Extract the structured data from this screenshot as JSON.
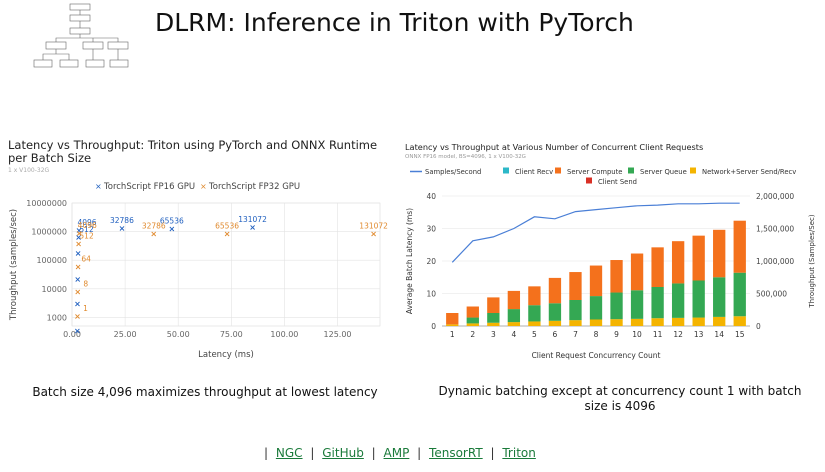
{
  "slide": {
    "title": "DLRM: Inference in Triton with PyTorch"
  },
  "left_chart": {
    "title": "Latency vs Throughput: Triton using PyTorch and ONNX Runtime per Batch Size",
    "subtitle": "1 x V100-32G",
    "caption": "Batch size 4,096 maximizes throughput at lowest latency"
  },
  "right_chart": {
    "title": "Latency vs Throughput at Various Number of Concurrent Client Requests",
    "subtitle": "ONNX FP16 model, BS=4096, 1 x V100-32G",
    "caption": "Dynamic batching except at concurrency count 1 with batch size is 4096"
  },
  "links": {
    "ngc": "NGC",
    "github": "GitHub",
    "amp": "AMP",
    "tensorrt": "TensorRT",
    "triton": "Triton",
    "sep": "|"
  },
  "chart_data": [
    {
      "type": "scatter",
      "xlabel": "Latency (ms)",
      "ylabel": "Throughput (samples/sec)",
      "xlim": [
        0,
        145
      ],
      "ylim": [
        500,
        10000000
      ],
      "yscale": "log",
      "xticks": [
        "0.00",
        "25.00",
        "50.00",
        "75.00",
        "100.00",
        "125.00"
      ],
      "yticks": [
        "1000",
        "10000",
        "100000",
        "1000000",
        "10000000"
      ],
      "grid": true,
      "legend": "top",
      "series": [
        {
          "name": "TorchScript FP16 GPU",
          "color": "#1f5fbf",
          "marker": "x",
          "points": [
            [
              2.5,
              350,
              ""
            ],
            [
              2.6,
              3000,
              ""
            ],
            [
              2.7,
              22000,
              ""
            ],
            [
              2.9,
              180000,
              ""
            ],
            [
              3.1,
              650000,
              "512"
            ],
            [
              3.3,
              1150000,
              "4096"
            ],
            [
              23.5,
              1350000,
              "32786"
            ],
            [
              47,
              1300000,
              "65536"
            ],
            [
              85,
              1450000,
              "131072"
            ]
          ]
        },
        {
          "name": "TorchScript FP32 GPU",
          "color": "#e08a2e",
          "marker": "x",
          "points": [
            [
              2.6,
              1100,
              "1"
            ],
            [
              2.7,
              8000,
              "8"
            ],
            [
              2.9,
              60000,
              "64"
            ],
            [
              3.1,
              380000,
              "512"
            ],
            [
              3.4,
              900000,
              "4096"
            ],
            [
              38.5,
              850000,
              "32786"
            ],
            [
              73,
              850000,
              "65536"
            ],
            [
              142,
              850000,
              "131072"
            ]
          ]
        }
      ]
    },
    {
      "type": "bar",
      "stacked": true,
      "xlabel": "Client Request Concurrency Count",
      "ylabel": "Average Batch Latency (ms)",
      "y2label": "Throughput (Samples/Sec)",
      "categories": [
        "1",
        "2",
        "3",
        "4",
        "5",
        "6",
        "7",
        "8",
        "9",
        "10",
        "11",
        "12",
        "13",
        "14",
        "15"
      ],
      "ylim": [
        0,
        40
      ],
      "yticks": [
        "0",
        "10",
        "20",
        "30",
        "40"
      ],
      "y2lim": [
        0,
        2000000
      ],
      "y2ticks": [
        "0",
        "500,000",
        "1,000,000",
        "1,500,000",
        "2,000,000"
      ],
      "legend": "top",
      "series": [
        {
          "name": "Client Send",
          "color": "#d93025",
          "values": [
            0,
            0,
            0,
            0,
            0,
            0,
            0,
            0,
            0,
            0,
            0,
            0,
            0,
            0,
            0
          ]
        },
        {
          "name": "Network+Server Send/Recv",
          "color": "#f4b400",
          "values": [
            0.5,
            0.8,
            1,
            1.2,
            1.4,
            1.6,
            1.8,
            2,
            2.1,
            2.2,
            2.4,
            2.5,
            2.6,
            2.8,
            3
          ]
        },
        {
          "name": "Server Queue",
          "color": "#34a853",
          "values": [
            0,
            1.8,
            3,
            4,
            5,
            5.4,
            6.2,
            7.2,
            8.2,
            8.8,
            9.6,
            10.6,
            11.4,
            12.2,
            13.4
          ]
        },
        {
          "name": "Server Compute",
          "color": "#f4711c",
          "values": [
            3.5,
            3.4,
            4.8,
            5.6,
            5.8,
            7.8,
            8.6,
            9.4,
            10,
            11.3,
            12.2,
            13,
            13.8,
            14.6,
            16
          ]
        },
        {
          "name": "Client Recv",
          "color": "#2cb8c8",
          "values": [
            0,
            0,
            0,
            0,
            0,
            0,
            0,
            0,
            0,
            0,
            0,
            0,
            0,
            0,
            0
          ]
        },
        {
          "name": "Samples/Second",
          "color": "#4a7fd6",
          "axis": "right",
          "line": true,
          "values": [
            980000,
            1310000,
            1370000,
            1500000,
            1680000,
            1650000,
            1760000,
            1790000,
            1820000,
            1850000,
            1860000,
            1880000,
            1880000,
            1890000,
            1890000
          ]
        }
      ]
    }
  ]
}
